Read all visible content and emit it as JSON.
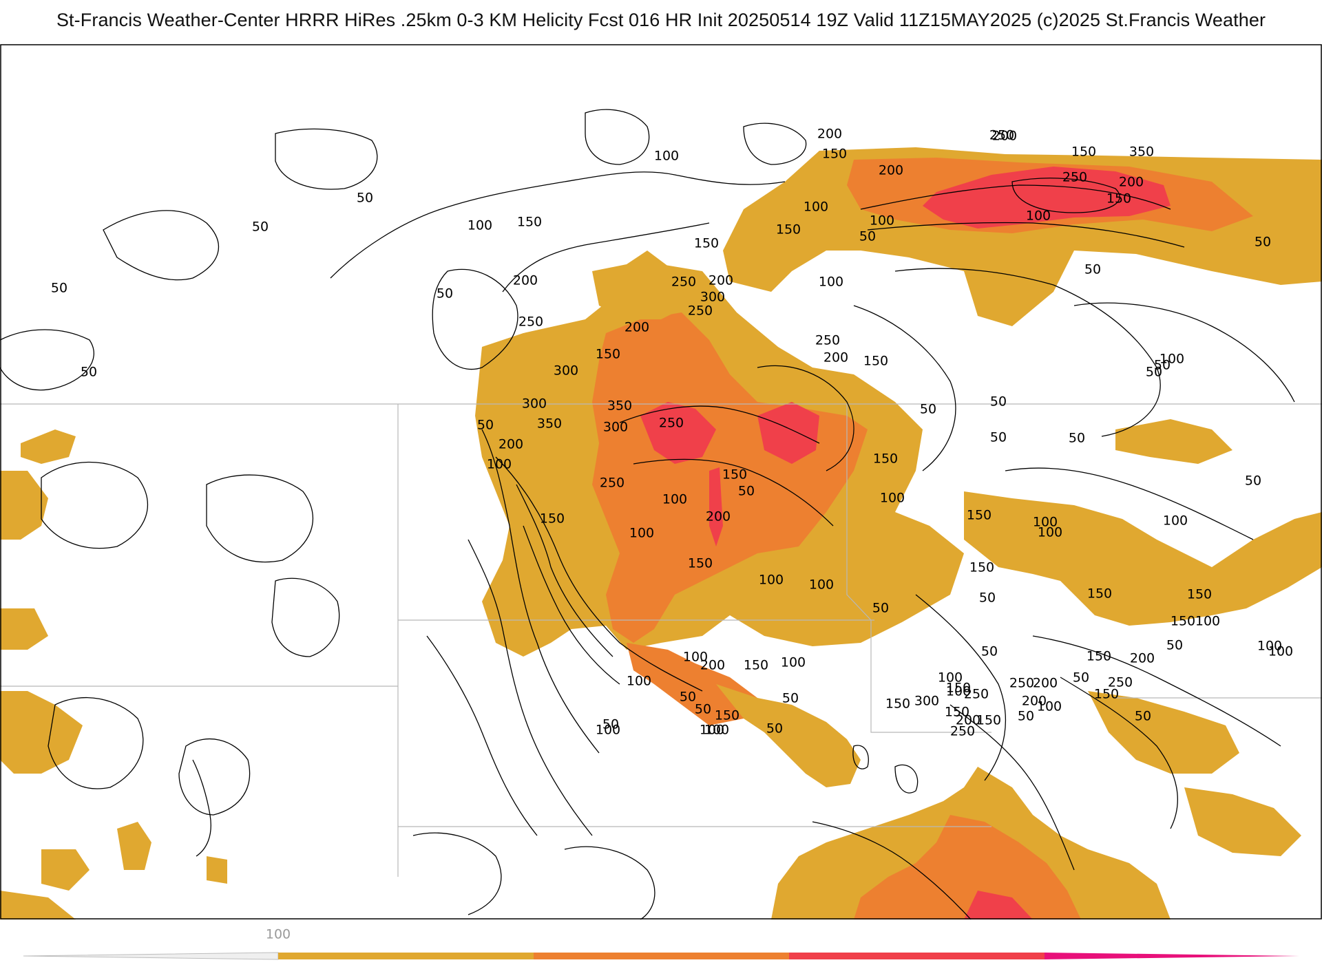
{
  "header": {
    "title": "St-Francis Weather-Center HRRR HiRes .25km 0-3 KM Helicity Fcst 016 HR Init 20250514 19Z  Valid 11Z15MAY2025    (c)2025 St.Francis Weather"
  },
  "colors": {
    "fill_100_200": "#e0a830",
    "fill_200_300": "#ed8030",
    "fill_300_400": "#f0404a",
    "fill_400_plus": "#e8107a",
    "contour_line": "#000000",
    "boundary_line": "#b8b8b8"
  },
  "legend": {
    "min_label": "100",
    "segments": [
      {
        "from": 100,
        "to": 200,
        "color": "#e0a830"
      },
      {
        "from": 200,
        "to": 300,
        "color": "#ed8030"
      },
      {
        "from": 300,
        "to": 400,
        "color": "#f0404a"
      },
      {
        "from": 400,
        "to": 500,
        "color": "#e8107a"
      }
    ]
  },
  "contour_labels": [
    {
      "text": "50"
    },
    {
      "text": "50"
    },
    {
      "text": "50"
    },
    {
      "text": "50"
    },
    {
      "text": "50"
    },
    {
      "text": "100"
    },
    {
      "text": "150"
    },
    {
      "text": "100"
    },
    {
      "text": "200"
    },
    {
      "text": "150"
    },
    {
      "text": "100"
    },
    {
      "text": "150"
    },
    {
      "text": "200"
    },
    {
      "text": "200"
    },
    {
      "text": "150"
    },
    {
      "text": "250"
    },
    {
      "text": "350"
    },
    {
      "text": "200"
    },
    {
      "text": "250"
    },
    {
      "text": "200"
    },
    {
      "text": "150"
    },
    {
      "text": "100"
    },
    {
      "text": "100"
    },
    {
      "text": "50"
    },
    {
      "text": "50"
    },
    {
      "text": "50"
    },
    {
      "text": "150"
    },
    {
      "text": "200"
    },
    {
      "text": "250"
    },
    {
      "text": "100"
    },
    {
      "text": "300"
    },
    {
      "text": "250"
    },
    {
      "text": "200"
    },
    {
      "text": "250"
    },
    {
      "text": "200"
    },
    {
      "text": "150"
    },
    {
      "text": "150"
    },
    {
      "text": "250"
    },
    {
      "text": "300"
    },
    {
      "text": "300"
    },
    {
      "text": "350"
    },
    {
      "text": "350"
    },
    {
      "text": "300"
    },
    {
      "text": "250"
    },
    {
      "text": "50"
    },
    {
      "text": "200"
    },
    {
      "text": "100"
    },
    {
      "text": "50"
    },
    {
      "text": "50"
    },
    {
      "text": "250"
    },
    {
      "text": "150"
    },
    {
      "text": "50"
    },
    {
      "text": "100"
    },
    {
      "text": "150"
    },
    {
      "text": "200"
    },
    {
      "text": "100"
    },
    {
      "text": "100"
    },
    {
      "text": "150"
    },
    {
      "text": "100"
    },
    {
      "text": "150"
    },
    {
      "text": "50"
    },
    {
      "text": "50"
    },
    {
      "text": "100"
    },
    {
      "text": "50"
    },
    {
      "text": "50"
    },
    {
      "text": "150"
    },
    {
      "text": "100"
    },
    {
      "text": "100"
    },
    {
      "text": "50"
    },
    {
      "text": "150"
    },
    {
      "text": "50"
    },
    {
      "text": "150"
    },
    {
      "text": "100"
    },
    {
      "text": "150"
    },
    {
      "text": "150"
    },
    {
      "text": "100"
    },
    {
      "text": "50"
    },
    {
      "text": "150"
    },
    {
      "text": "100"
    },
    {
      "text": "200"
    },
    {
      "text": "250"
    },
    {
      "text": "100"
    },
    {
      "text": "50"
    },
    {
      "text": "50"
    },
    {
      "text": "50"
    },
    {
      "text": "100"
    },
    {
      "text": "50"
    },
    {
      "text": "100"
    },
    {
      "text": "50"
    },
    {
      "text": "200"
    },
    {
      "text": "150"
    },
    {
      "text": "250"
    },
    {
      "text": "300"
    },
    {
      "text": "250"
    },
    {
      "text": "200"
    },
    {
      "text": "100"
    },
    {
      "text": "150"
    },
    {
      "text": "150"
    },
    {
      "text": "100"
    },
    {
      "text": "150"
    },
    {
      "text": "200"
    },
    {
      "text": "150"
    },
    {
      "text": "250"
    },
    {
      "text": "100"
    },
    {
      "text": "100"
    },
    {
      "text": "100"
    },
    {
      "text": "150"
    },
    {
      "text": "200"
    },
    {
      "text": "150"
    },
    {
      "text": "50"
    },
    {
      "text": "50"
    },
    {
      "text": "50"
    },
    {
      "text": "100"
    },
    {
      "text": "100"
    },
    {
      "text": "50"
    },
    {
      "text": "50"
    },
    {
      "text": "100"
    }
  ]
}
